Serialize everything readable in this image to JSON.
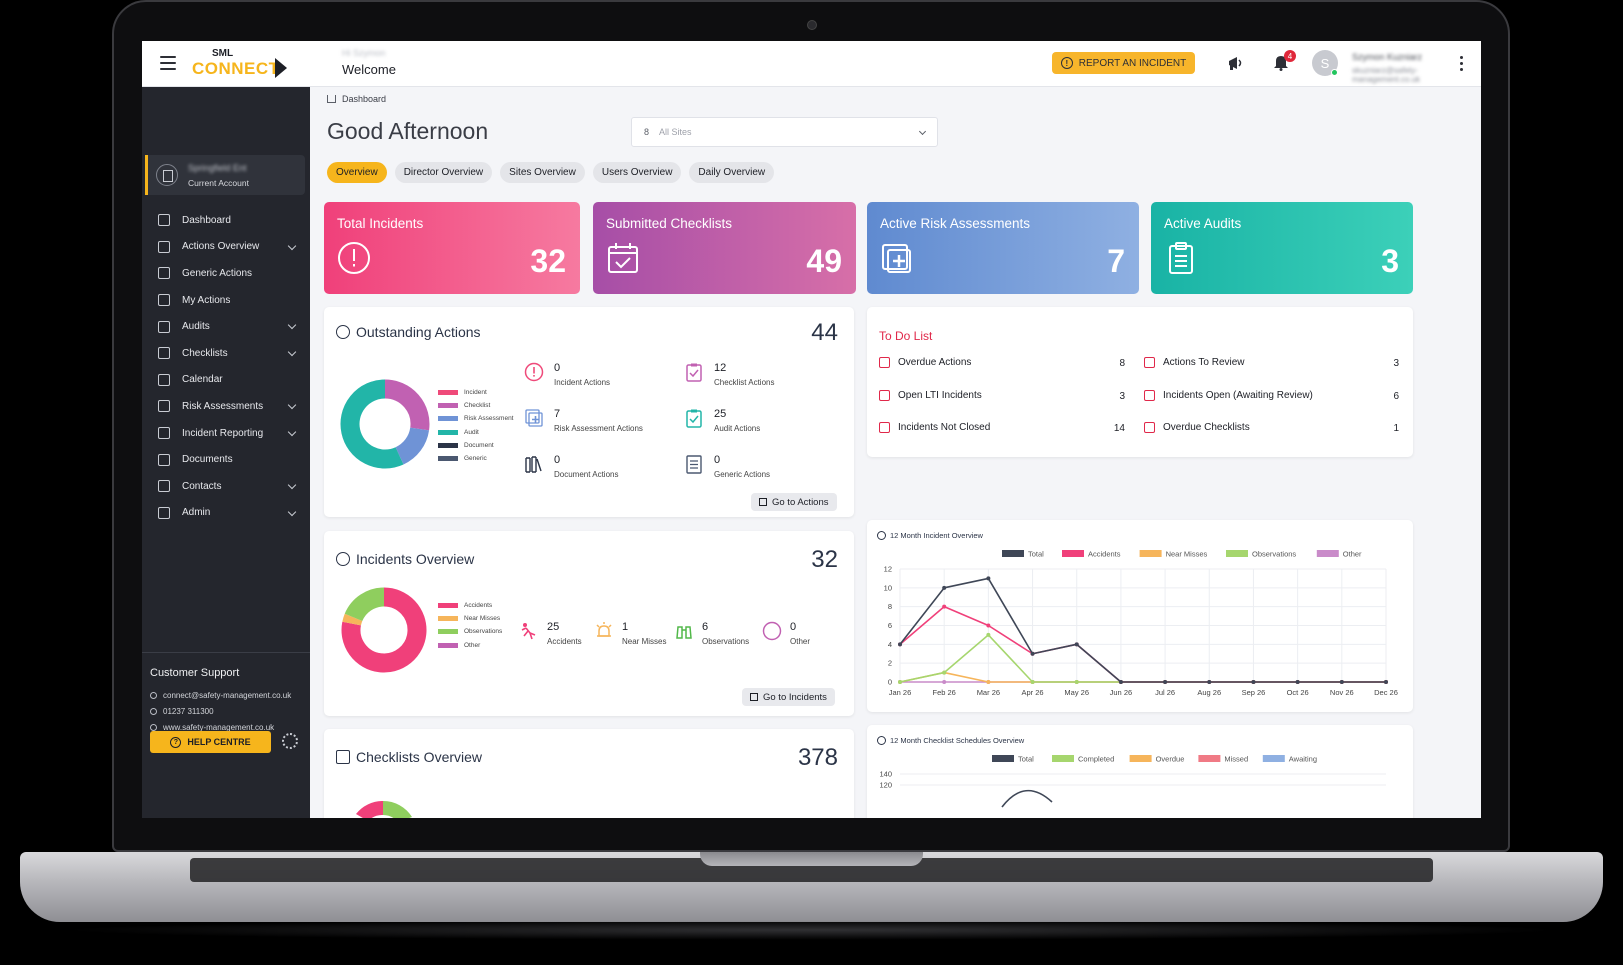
{
  "topbar": {
    "logo_top": "SML",
    "logo_main": "CONNECT",
    "welcome_sub": "Hi Szymon",
    "welcome": "Welcome",
    "report_button": "REPORT AN INCIDENT",
    "notification_count": "4",
    "avatar_letter": "S",
    "user_name": "Szymon Kuzniarz",
    "user_email": "skuzniarz@safety-management.co.uk"
  },
  "sidebar": {
    "account_name": "Springfield Ent",
    "account_label": "Current Account",
    "items": [
      {
        "label": "Dashboard",
        "has_children": false
      },
      {
        "label": "Actions Overview",
        "has_children": true
      },
      {
        "label": "Generic Actions",
        "has_children": false
      },
      {
        "label": "My Actions",
        "has_children": false
      },
      {
        "label": "Audits",
        "has_children": true
      },
      {
        "label": "Checklists",
        "has_children": true
      },
      {
        "label": "Calendar",
        "has_children": false
      },
      {
        "label": "Risk Assessments",
        "has_children": true
      },
      {
        "label": "Incident Reporting",
        "has_children": true
      },
      {
        "label": "Documents",
        "has_children": false
      },
      {
        "label": "Contacts",
        "has_children": true
      },
      {
        "label": "Admin",
        "has_children": true
      }
    ],
    "support": {
      "title": "Customer Support",
      "email": "connect@safety-management.co.uk",
      "phone": "01237 311300",
      "website": "www.safety-management.co.uk",
      "help_button": "HELP CENTRE"
    }
  },
  "main": {
    "breadcrumb": "Dashboard",
    "greeting": "Good Afternoon",
    "site_select": {
      "prefix": "8",
      "value": "All Sites"
    },
    "tabs": [
      "Overview",
      "Director Overview",
      "Sites Overview",
      "Users Overview",
      "Daily Overview"
    ],
    "active_tab": "Overview"
  },
  "kpis": [
    {
      "title": "Total Incidents",
      "value": "32",
      "icon": "alert-circle-icon",
      "color_from": "#f0407a",
      "color_to": "#f67aa0"
    },
    {
      "title": "Submitted Checklists",
      "value": "49",
      "icon": "calendar-check-icon",
      "color_from": "#a64ea7",
      "color_to": "#d76fa8"
    },
    {
      "title": "Active Risk Assessments",
      "value": "7",
      "icon": "medical-plus-icon",
      "color_from": "#5f8ad0",
      "color_to": "#8fb0e2"
    },
    {
      "title": "Active Audits",
      "value": "3",
      "icon": "clipboard-icon",
      "color_from": "#19b3a5",
      "color_to": "#3cd0b9"
    }
  ],
  "outstanding_actions": {
    "title": "Outstanding Actions",
    "total": "44",
    "legend": [
      {
        "label": "Incident",
        "color": "#ef4a7a"
      },
      {
        "label": "Checklist",
        "color": "#c161b2"
      },
      {
        "label": "Risk Assessment",
        "color": "#6f93d6"
      },
      {
        "label": "Audit",
        "color": "#22b5a8"
      },
      {
        "label": "Document",
        "color": "#2b3447"
      },
      {
        "label": "Generic",
        "color": "#4b5870"
      }
    ],
    "stats": [
      {
        "value": "0",
        "label": "Incident Actions",
        "icon": "alert-circle-icon",
        "color": "#ef4a7a"
      },
      {
        "value": "12",
        "label": "Checklist Actions",
        "icon": "checklist-icon",
        "color": "#c161b2"
      },
      {
        "value": "7",
        "label": "Risk Assessment Actions",
        "icon": "medical-plus-icon",
        "color": "#6f93d6"
      },
      {
        "value": "25",
        "label": "Audit Actions",
        "icon": "clipboard-icon",
        "color": "#22b5a8"
      },
      {
        "value": "0",
        "label": "Document Actions",
        "icon": "books-icon",
        "color": "#2b3447"
      },
      {
        "value": "0",
        "label": "Generic Actions",
        "icon": "document-icon",
        "color": "#4b5870"
      }
    ],
    "donut": [
      0,
      12,
      7,
      25,
      0,
      0
    ],
    "go_button": "Go to Actions"
  },
  "todo": {
    "title": "To Do List",
    "items": [
      {
        "label": "Overdue Actions",
        "value": "8"
      },
      {
        "label": "Actions To Review",
        "value": "3"
      },
      {
        "label": "Open LTI Incidents",
        "value": "3"
      },
      {
        "label": "Incidents Open (Awaiting Review)",
        "value": "6"
      },
      {
        "label": "Incidents Not Closed",
        "value": "14"
      },
      {
        "label": "Overdue Checklists",
        "value": "1"
      }
    ]
  },
  "incidents_overview": {
    "title": "Incidents Overview",
    "total": "32",
    "legend": [
      {
        "label": "Accidents",
        "color": "#f0407a"
      },
      {
        "label": "Near Misses",
        "color": "#f6b55b"
      },
      {
        "label": "Observations",
        "color": "#8fce5e"
      },
      {
        "label": "Other",
        "color": "#c161b2"
      }
    ],
    "stats": [
      {
        "value": "25",
        "label": "Accidents",
        "icon": "falling-person-icon",
        "color": "#f0407a"
      },
      {
        "value": "1",
        "label": "Near Misses",
        "icon": "siren-icon",
        "color": "#f6b55b"
      },
      {
        "value": "6",
        "label": "Observations",
        "icon": "binoculars-icon",
        "color": "#52b84a"
      },
      {
        "value": "0",
        "label": "Other",
        "icon": "circle-icon",
        "color": "#c161b2"
      }
    ],
    "donut": [
      25,
      1,
      6,
      0
    ],
    "go_button": "Go to Incidents"
  },
  "checklists_overview": {
    "title": "Checklists Overview",
    "total": "378"
  },
  "chart_data": [
    {
      "type": "line",
      "title": "12 Month Incident Overview",
      "categories": [
        "Jan 26",
        "Feb 26",
        "Mar 26",
        "Apr 26",
        "May 26",
        "Jun 26",
        "Jul 26",
        "Aug 26",
        "Sep 26",
        "Oct 26",
        "Nov 26",
        "Dec 26"
      ],
      "ylim": [
        0,
        12
      ],
      "yticks": [
        0,
        2,
        4,
        6,
        8,
        10,
        12
      ],
      "legend_position": "top",
      "grid": true,
      "series": [
        {
          "name": "Total",
          "color": "#3f4757",
          "values": [
            4,
            10,
            11,
            3,
            4,
            0,
            0,
            0,
            0,
            0,
            0,
            0
          ]
        },
        {
          "name": "Accidents",
          "color": "#f0407a",
          "values": [
            4,
            8,
            6,
            3,
            4,
            0,
            0,
            0,
            0,
            0,
            0,
            0
          ]
        },
        {
          "name": "Near Misses",
          "color": "#f6b55b",
          "values": [
            0,
            1,
            0,
            0,
            0,
            0,
            0,
            0,
            0,
            0,
            0,
            0
          ]
        },
        {
          "name": "Observations",
          "color": "#a6d66e",
          "values": [
            0,
            1,
            5,
            0,
            0,
            0,
            0,
            0,
            0,
            0,
            0,
            0
          ]
        },
        {
          "name": "Other",
          "color": "#c98bc9",
          "values": [
            0,
            0,
            0,
            0,
            0,
            0,
            0,
            0,
            0,
            0,
            0,
            0
          ]
        }
      ]
    },
    {
      "type": "line",
      "title": "12 Month Checklist Schedules Overview",
      "ylim": [
        0,
        140
      ],
      "yticks": [
        120,
        140
      ],
      "legend_position": "top",
      "series": [
        {
          "name": "Total",
          "color": "#3f4757"
        },
        {
          "name": "Completed",
          "color": "#a6d66e"
        },
        {
          "name": "Overdue",
          "color": "#f6b55b"
        },
        {
          "name": "Missed",
          "color": "#f07a85"
        },
        {
          "name": "Awaiting",
          "color": "#8fb0e2"
        }
      ]
    }
  ]
}
